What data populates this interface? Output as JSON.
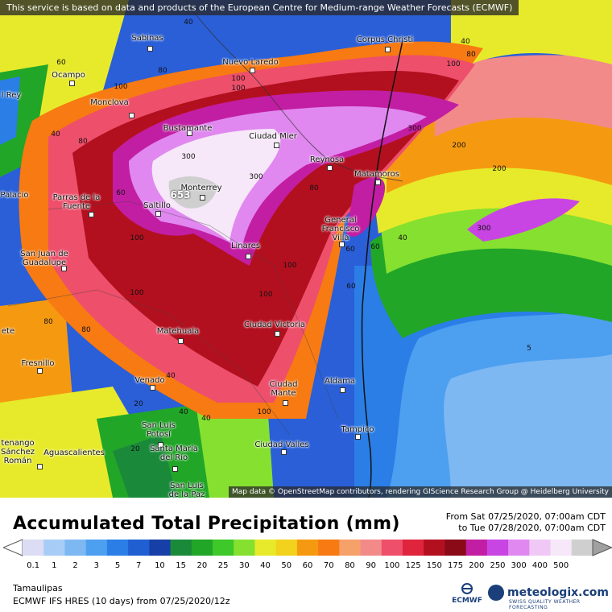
{
  "header": {
    "notice": "This service is based on data and products of the European Centre for Medium-range Weather Forecasts (ECMWF)"
  },
  "map": {
    "attribution": "Map data © OpenStreetMap contributors, rendering GIScience Research Group @ Heidelberg University",
    "cities": [
      {
        "name": "Sabinas",
        "id": "sabinas"
      },
      {
        "name": "Corpus Christi",
        "id": "corpus-christi"
      },
      {
        "name": "Nuevo Laredo",
        "id": "nuevo-laredo"
      },
      {
        "name": "Ocampo",
        "id": "ocampo"
      },
      {
        "name": "Monclova",
        "id": "monclova"
      },
      {
        "name": "Bustamante",
        "id": "bustamante"
      },
      {
        "name": "Ciudad Mier",
        "id": "ciudad-mier"
      },
      {
        "name": "Reynosa",
        "id": "reynosa"
      },
      {
        "name": "Matamoros",
        "id": "matamoros"
      },
      {
        "name": "Monterrey",
        "id": "monterrey"
      },
      {
        "name": "Saltillo",
        "id": "saltillo"
      },
      {
        "name": "Parras de la Fuente",
        "id": "parras"
      },
      {
        "name": "General Francisco Villa",
        "id": "gral-villa"
      },
      {
        "name": "Linares",
        "id": "linares"
      },
      {
        "name": "San Juan de Guadalupe",
        "id": "san-juan"
      },
      {
        "name": "Matehuala",
        "id": "matehuala"
      },
      {
        "name": "Ciudad Victoria",
        "id": "victoria"
      },
      {
        "name": "Fresnillo",
        "id": "fresnillo"
      },
      {
        "name": "Venado",
        "id": "venado"
      },
      {
        "name": "Aldama",
        "id": "aldama"
      },
      {
        "name": "Ciudad Mante",
        "id": "mante"
      },
      {
        "name": "Tampico",
        "id": "tampico"
      },
      {
        "name": "San Luis Potosí",
        "id": "slp"
      },
      {
        "name": "Santa María del Río",
        "id": "santa-maria"
      },
      {
        "name": "Ciudad Valles",
        "id": "valles"
      },
      {
        "name": "Aguascalientes",
        "id": "aguascalientes"
      },
      {
        "name": "San Luis de la Paz",
        "id": "slp-paz"
      },
      {
        "name": "Palacio",
        "id": "palacio"
      },
      {
        "name": "l Rey",
        "id": "rey"
      },
      {
        "name": "tenango Sánchez Román",
        "id": "tenango"
      },
      {
        "name": "ete",
        "id": "ete"
      }
    ],
    "contour_labels": [
      "40",
      "60",
      "80",
      "100",
      "300",
      "300",
      "200",
      "300",
      "100",
      "80",
      "40",
      "80",
      "60",
      "100",
      "40",
      "80",
      "100",
      "40",
      "40",
      "20",
      "5",
      "653",
      "60",
      "60",
      "80",
      "100",
      "100",
      "300",
      "100",
      "100",
      "40",
      "40",
      "60",
      "80",
      "100",
      "20",
      "200"
    ]
  },
  "legend": {
    "title": "Accumulated Total Precipitation (mm)",
    "from_text": "From Sat 07/25/2020, 07:00am CDT",
    "to_text": "to Tue 07/28/2020, 07:00am CDT",
    "ticks": [
      "0.1",
      "1",
      "2",
      "3",
      "5",
      "7",
      "10",
      "15",
      "20",
      "25",
      "30",
      "40",
      "50",
      "60",
      "70",
      "80",
      "90",
      "100",
      "125",
      "150",
      "175",
      "200",
      "250",
      "300",
      "400",
      "500"
    ],
    "colors": [
      "#dcdcf5",
      "#a7cdf7",
      "#7db8f2",
      "#4d9ff0",
      "#2a7ee6",
      "#1f5fd1",
      "#173fa8",
      "#1a8a3a",
      "#21a628",
      "#3ec82a",
      "#86e030",
      "#e7ea2a",
      "#f2d21c",
      "#f59a10",
      "#f77a12",
      "#f6a06a",
      "#f28a8a",
      "#ee4f6b",
      "#e0243d",
      "#b3101f",
      "#8a0a18",
      "#c21ea3",
      "#c845e3",
      "#e088f0",
      "#f0c8f6",
      "#f6e8f8",
      "#cfcfcf"
    ],
    "region": "Tamaulipas",
    "model": "ECMWF IFS HRES (10 days) from 07/25/2020/12z",
    "logo_ecmwf": "ECMWF",
    "logo_meteologix": "meteologix.com",
    "logo_sub": "SWISS QUALITY WEATHER FORECASTING"
  }
}
